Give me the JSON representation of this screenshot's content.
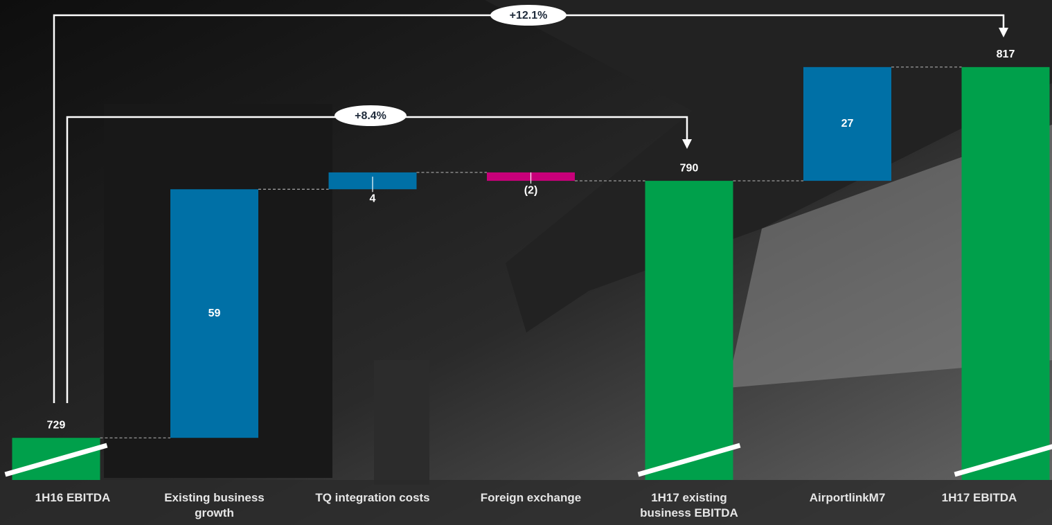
{
  "chart_data": {
    "type": "waterfall",
    "categories": [
      "1H16 EBITDA",
      "Existing business growth",
      "TQ integration costs",
      "Foreign exchange",
      "1H17 existing business EBITDA",
      "AirportlinkM7",
      "1H17 EBITDA"
    ],
    "values": [
      729,
      59,
      4,
      -2,
      790,
      27,
      817
    ],
    "value_labels": [
      "729",
      "59",
      "4",
      "(2)",
      "790",
      "27",
      "817"
    ],
    "measures": [
      "total",
      "relative",
      "relative",
      "relative",
      "total",
      "relative",
      "total"
    ],
    "colors": [
      "#00a04b",
      "#0070a6",
      "#0070a6",
      "#c8007a",
      "#00a04b",
      "#0070a6",
      "#00a04b"
    ],
    "annotations": [
      "+12.1%",
      "+8.4%"
    ],
    "ylim": [
      719,
      827
    ]
  }
}
